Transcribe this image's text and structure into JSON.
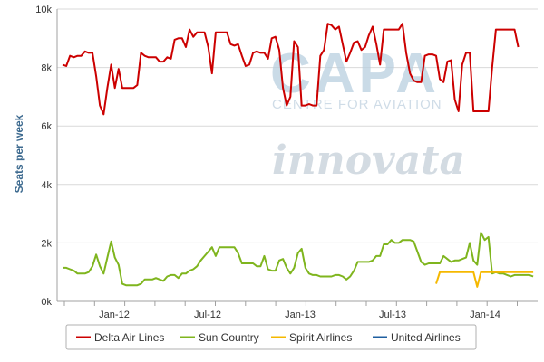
{
  "watermarks": {
    "capa": "CAPA",
    "capa_sub": "CENTRE FOR AVIATION",
    "innovata": "innovata"
  },
  "chart_data": {
    "type": "line",
    "title": "",
    "xlabel": "",
    "ylabel": "Seats per week",
    "ylim": [
      0,
      10000
    ],
    "y_ticks": [
      {
        "value": 0,
        "label": "0k"
      },
      {
        "value": 2000,
        "label": "2k"
      },
      {
        "value": 4000,
        "label": "4k"
      },
      {
        "value": 6000,
        "label": "6k"
      },
      {
        "value": 8000,
        "label": "8k"
      },
      {
        "value": 10000,
        "label": "10k"
      }
    ],
    "x_ticks": [
      "Jan-12",
      "Jul-12",
      "Jan-13",
      "Jul-13",
      "Jan-14"
    ],
    "grid": "horizontal",
    "legend_position": "bottom",
    "series": [
      {
        "name": "Delta Air Lines",
        "color": "#cc0000",
        "points": [
          [
            -12,
            8100
          ],
          [
            -11,
            8050
          ],
          [
            -10,
            8400
          ],
          [
            -9,
            8350
          ],
          [
            -8,
            8400
          ],
          [
            -7,
            8400
          ],
          [
            -6,
            8550
          ],
          [
            -5,
            8500
          ],
          [
            -4,
            8500
          ],
          [
            -3,
            7700
          ],
          [
            -2,
            6700
          ],
          [
            -1,
            6400
          ],
          [
            0,
            7300
          ],
          [
            1,
            8100
          ],
          [
            2,
            7300
          ],
          [
            3,
            7950
          ],
          [
            4,
            7300
          ],
          [
            5,
            7300
          ],
          [
            6,
            7300
          ],
          [
            7,
            7300
          ],
          [
            8,
            7400
          ],
          [
            9,
            8500
          ],
          [
            10,
            8400
          ],
          [
            11,
            8350
          ],
          [
            12,
            8350
          ],
          [
            13,
            8350
          ],
          [
            14,
            8200
          ],
          [
            15,
            8200
          ],
          [
            16,
            8350
          ],
          [
            17,
            8300
          ],
          [
            18,
            8950
          ],
          [
            19,
            9000
          ],
          [
            20,
            9000
          ],
          [
            21,
            8700
          ],
          [
            22,
            9300
          ],
          [
            23,
            9050
          ],
          [
            24,
            9200
          ],
          [
            25,
            9200
          ],
          [
            26,
            9200
          ],
          [
            27,
            8700
          ],
          [
            28,
            7800
          ],
          [
            29,
            9200
          ],
          [
            30,
            9200
          ],
          [
            31,
            9200
          ],
          [
            32,
            9200
          ],
          [
            33,
            8800
          ],
          [
            34,
            8750
          ],
          [
            35,
            8800
          ],
          [
            36,
            8400
          ],
          [
            37,
            8050
          ],
          [
            38,
            8100
          ],
          [
            39,
            8500
          ],
          [
            40,
            8550
          ],
          [
            41,
            8500
          ],
          [
            42,
            8500
          ],
          [
            43,
            8300
          ],
          [
            44,
            9000
          ],
          [
            45,
            9050
          ],
          [
            46,
            8600
          ],
          [
            47,
            7300
          ],
          [
            48,
            6700
          ],
          [
            49,
            7000
          ],
          [
            50,
            8900
          ],
          [
            51,
            8700
          ],
          [
            52,
            6700
          ],
          [
            53,
            6700
          ],
          [
            54,
            6750
          ],
          [
            55,
            6700
          ],
          [
            56,
            6700
          ],
          [
            57,
            8400
          ],
          [
            58,
            8600
          ],
          [
            59,
            9500
          ],
          [
            60,
            9450
          ],
          [
            61,
            9300
          ],
          [
            62,
            9400
          ],
          [
            63,
            8800
          ],
          [
            64,
            8200
          ],
          [
            65,
            8500
          ],
          [
            66,
            8850
          ],
          [
            67,
            8900
          ],
          [
            68,
            8600
          ],
          [
            69,
            8700
          ],
          [
            70,
            9100
          ],
          [
            71,
            9400
          ],
          [
            72,
            8800
          ],
          [
            73,
            8100
          ],
          [
            74,
            9300
          ],
          [
            75,
            9300
          ],
          [
            76,
            9300
          ],
          [
            77,
            9300
          ],
          [
            78,
            9300
          ],
          [
            79,
            9500
          ],
          [
            80,
            8500
          ],
          [
            81,
            7800
          ],
          [
            82,
            7550
          ],
          [
            83,
            7500
          ],
          [
            84,
            7500
          ],
          [
            85,
            8400
          ],
          [
            86,
            8450
          ],
          [
            87,
            8450
          ],
          [
            88,
            8400
          ],
          [
            89,
            7600
          ],
          [
            90,
            7500
          ],
          [
            91,
            8200
          ],
          [
            92,
            8250
          ],
          [
            93,
            6900
          ],
          [
            94,
            6500
          ],
          [
            95,
            8100
          ],
          [
            96,
            8500
          ],
          [
            97,
            8500
          ],
          [
            98,
            6500
          ],
          [
            99,
            6500
          ],
          [
            100,
            6500
          ],
          [
            101,
            6500
          ],
          [
            102,
            6500
          ],
          [
            103,
            8000
          ],
          [
            104,
            9300
          ],
          [
            105,
            9300
          ],
          [
            106,
            9300
          ],
          [
            107,
            9300
          ],
          [
            108,
            9300
          ],
          [
            109,
            9300
          ],
          [
            110,
            8700
          ]
        ]
      },
      {
        "name": "Sun Country",
        "color": "#7fb51e",
        "points": [
          [
            -12,
            1150
          ],
          [
            -11,
            1150
          ],
          [
            -10,
            1100
          ],
          [
            -9,
            1050
          ],
          [
            -8,
            950
          ],
          [
            -7,
            950
          ],
          [
            -6,
            950
          ],
          [
            -5,
            1000
          ],
          [
            -4,
            1200
          ],
          [
            -3,
            1600
          ],
          [
            -2,
            1200
          ],
          [
            -1,
            950
          ],
          [
            0,
            1500
          ],
          [
            1,
            2050
          ],
          [
            2,
            1500
          ],
          [
            3,
            1250
          ],
          [
            4,
            600
          ],
          [
            5,
            550
          ],
          [
            6,
            550
          ],
          [
            7,
            550
          ],
          [
            8,
            550
          ],
          [
            9,
            600
          ],
          [
            10,
            750
          ],
          [
            11,
            750
          ],
          [
            12,
            750
          ],
          [
            13,
            800
          ],
          [
            14,
            750
          ],
          [
            15,
            700
          ],
          [
            16,
            850
          ],
          [
            17,
            900
          ],
          [
            18,
            900
          ],
          [
            19,
            800
          ],
          [
            20,
            950
          ],
          [
            21,
            950
          ],
          [
            22,
            1050
          ],
          [
            23,
            1100
          ],
          [
            24,
            1200
          ],
          [
            25,
            1400
          ],
          [
            26,
            1550
          ],
          [
            27,
            1700
          ],
          [
            28,
            1850
          ],
          [
            29,
            1550
          ],
          [
            30,
            1850
          ],
          [
            31,
            1850
          ],
          [
            32,
            1850
          ],
          [
            33,
            1850
          ],
          [
            34,
            1850
          ],
          [
            35,
            1650
          ],
          [
            36,
            1300
          ],
          [
            37,
            1300
          ],
          [
            38,
            1300
          ],
          [
            39,
            1300
          ],
          [
            40,
            1200
          ],
          [
            41,
            1200
          ],
          [
            42,
            1550
          ],
          [
            43,
            1100
          ],
          [
            44,
            1050
          ],
          [
            45,
            1050
          ],
          [
            46,
            1400
          ],
          [
            47,
            1450
          ],
          [
            48,
            1150
          ],
          [
            49,
            950
          ],
          [
            50,
            1150
          ],
          [
            51,
            1650
          ],
          [
            52,
            1800
          ],
          [
            53,
            1150
          ],
          [
            54,
            950
          ],
          [
            55,
            900
          ],
          [
            56,
            900
          ],
          [
            57,
            850
          ],
          [
            58,
            850
          ],
          [
            59,
            850
          ],
          [
            60,
            850
          ],
          [
            61,
            900
          ],
          [
            62,
            900
          ],
          [
            63,
            850
          ],
          [
            64,
            750
          ],
          [
            65,
            850
          ],
          [
            66,
            1050
          ],
          [
            67,
            1350
          ],
          [
            68,
            1350
          ],
          [
            69,
            1350
          ],
          [
            70,
            1350
          ],
          [
            71,
            1400
          ],
          [
            72,
            1550
          ],
          [
            73,
            1550
          ],
          [
            74,
            1950
          ],
          [
            75,
            1950
          ],
          [
            76,
            2100
          ],
          [
            77,
            2000
          ],
          [
            78,
            2000
          ],
          [
            79,
            2100
          ],
          [
            80,
            2100
          ],
          [
            81,
            2100
          ],
          [
            82,
            2050
          ],
          [
            83,
            1700
          ],
          [
            84,
            1350
          ],
          [
            85,
            1250
          ],
          [
            86,
            1300
          ],
          [
            87,
            1300
          ],
          [
            88,
            1300
          ],
          [
            89,
            1300
          ],
          [
            90,
            1550
          ],
          [
            91,
            1450
          ],
          [
            92,
            1350
          ],
          [
            93,
            1400
          ],
          [
            94,
            1400
          ],
          [
            95,
            1450
          ],
          [
            96,
            1500
          ],
          [
            97,
            2000
          ],
          [
            98,
            1400
          ],
          [
            99,
            1250
          ],
          [
            100,
            2350
          ],
          [
            101,
            2100
          ],
          [
            102,
            2200
          ],
          [
            103,
            950
          ],
          [
            104,
            1000
          ],
          [
            105,
            950
          ],
          [
            106,
            950
          ],
          [
            107,
            900
          ],
          [
            108,
            850
          ],
          [
            109,
            900
          ],
          [
            110,
            900
          ],
          [
            111,
            900
          ],
          [
            112,
            900
          ],
          [
            113,
            900
          ],
          [
            114,
            850
          ]
        ]
      },
      {
        "name": "Spirit Airlines",
        "color": "#f5b800",
        "points": [
          [
            88,
            600
          ],
          [
            89,
            1000
          ],
          [
            90,
            1000
          ],
          [
            91,
            1000
          ],
          [
            92,
            1000
          ],
          [
            93,
            1000
          ],
          [
            94,
            1000
          ],
          [
            95,
            1000
          ],
          [
            96,
            1000
          ],
          [
            97,
            1000
          ],
          [
            98,
            1000
          ],
          [
            99,
            500
          ],
          [
            100,
            1000
          ],
          [
            101,
            1000
          ],
          [
            102,
            1000
          ],
          [
            103,
            1000
          ],
          [
            104,
            1000
          ],
          [
            105,
            1000
          ],
          [
            106,
            1000
          ],
          [
            107,
            1000
          ],
          [
            108,
            1000
          ],
          [
            109,
            1000
          ],
          [
            110,
            1000
          ],
          [
            111,
            1000
          ],
          [
            112,
            1000
          ],
          [
            113,
            1000
          ],
          [
            114,
            1000
          ]
        ]
      },
      {
        "name": "United Airlines",
        "color": "#1f5fa0",
        "points": []
      }
    ]
  }
}
